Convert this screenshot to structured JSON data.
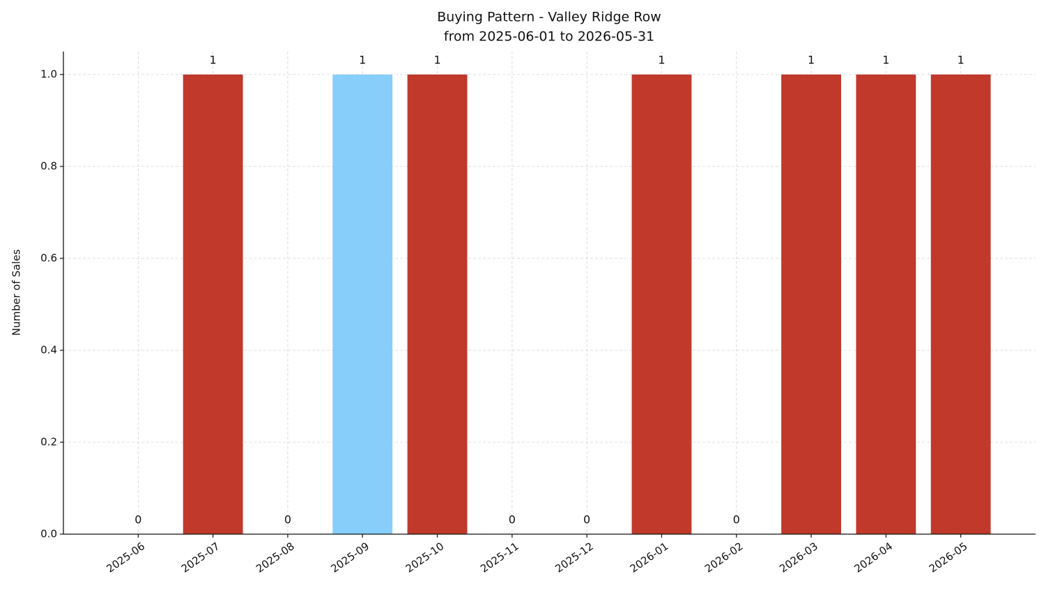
{
  "chart_data": {
    "type": "bar",
    "title": "Buying Pattern - Valley Ridge Row",
    "subtitle": "from 2025-06-01 to 2026-05-31",
    "y_label": "Number of Sales",
    "categories": [
      "2025-06",
      "2025-07",
      "2025-08",
      "2025-09",
      "2025-10",
      "2025-11",
      "2025-12",
      "2026-01",
      "2026-02",
      "2026-03",
      "2026-04",
      "2026-05"
    ],
    "values": [
      0,
      1,
      0,
      1,
      1,
      0,
      0,
      1,
      0,
      1,
      1,
      1
    ],
    "colors": [
      "#c0392b",
      "#c0392b",
      "#c0392b",
      "#87cefa",
      "#c0392b",
      "#c0392b",
      "#c0392b",
      "#c0392b",
      "#c0392b",
      "#c0392b",
      "#c0392b",
      "#c0392b"
    ],
    "ylim": [
      0,
      1.05
    ],
    "yticks": [
      {
        "value": 0,
        "label": "0.0"
      },
      {
        "value": 0.2,
        "label": "0.2"
      },
      {
        "value": 0.4,
        "label": "0.4"
      },
      {
        "value": 0.6,
        "label": "0.6"
      },
      {
        "value": 0.8,
        "label": "0.8"
      },
      {
        "value": 1,
        "label": "1.0"
      }
    ],
    "grid": true
  }
}
